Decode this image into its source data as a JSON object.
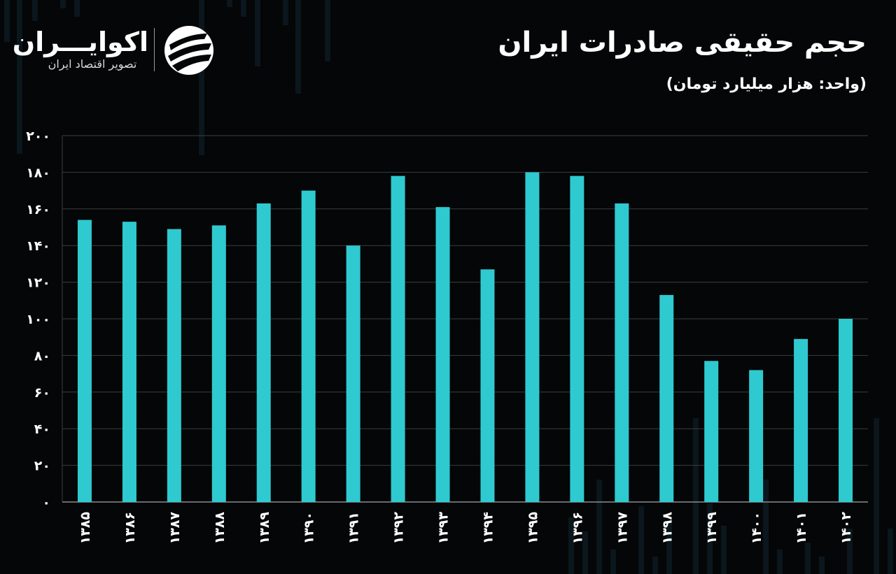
{
  "brand": {
    "name": "اکوایـــران",
    "tagline": "تصویر اقتصاد ایران"
  },
  "title": "حجم حقیقی صادرات ایران",
  "unit": "(واحد: هزار میلیارد تومان)",
  "colors": {
    "background": "#050607",
    "bar": "#2ecad0",
    "grid": "#3a3d40",
    "text": "#ffffff"
  },
  "chart_data": {
    "type": "bar",
    "categories": [
      "۱۳۸۵",
      "۱۳۸۶",
      "۱۳۸۷",
      "۱۳۸۸",
      "۱۳۸۹",
      "۱۳۹۰",
      "۱۳۹۱",
      "۱۳۹۲",
      "۱۳۹۳",
      "۱۳۹۴",
      "۱۳۹۵",
      "۱۳۹۶",
      "۱۳۹۷",
      "۱۳۹۸",
      "۱۳۹۹",
      "۱۴۰۰",
      "۱۴۰۱",
      "۱۴۰۲"
    ],
    "values": [
      154,
      153,
      149,
      151,
      163,
      170,
      140,
      178,
      161,
      127,
      180,
      178,
      163,
      113,
      77,
      72,
      89,
      100
    ],
    "yticks": [
      "۰",
      "۲۰",
      "۴۰",
      "۶۰",
      "۸۰",
      "۱۰۰",
      "۱۲۰",
      "۱۴۰",
      "۱۶۰",
      "۱۸۰",
      "۲۰۰"
    ],
    "ylim": [
      0,
      200
    ],
    "grid": true,
    "xlabel": "",
    "ylabel": ""
  }
}
